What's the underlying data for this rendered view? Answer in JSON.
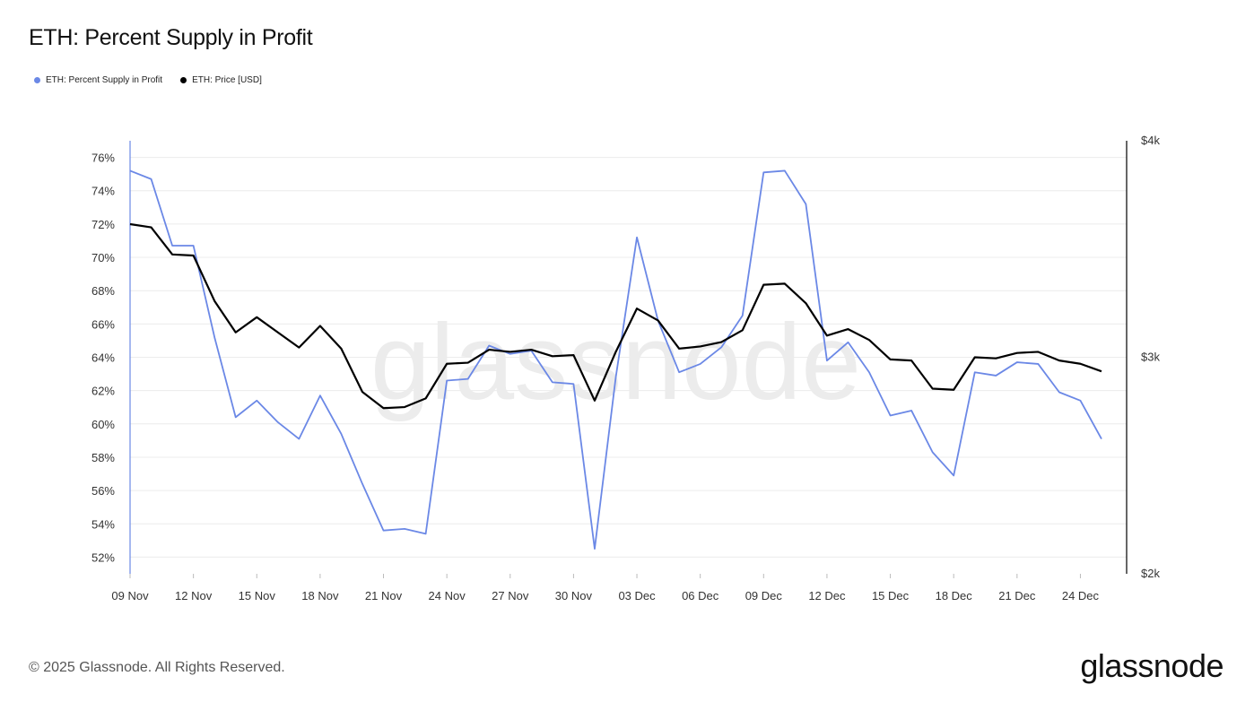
{
  "title": "ETH: Percent Supply in Profit",
  "footer": "© 2025 Glassnode. All Rights Reserved.",
  "brand": "glassnode",
  "watermark": "glassnode",
  "colors": {
    "supply": "#6b88e6",
    "price": "#000000",
    "grid": "#ececec"
  },
  "chart_data": {
    "type": "line",
    "title": "ETH: Percent Supply in Profit",
    "legend_position": "top-left",
    "grid": true,
    "x": [
      "09 Nov",
      "10 Nov",
      "11 Nov",
      "12 Nov",
      "13 Nov",
      "14 Nov",
      "15 Nov",
      "16 Nov",
      "17 Nov",
      "18 Nov",
      "19 Nov",
      "20 Nov",
      "21 Nov",
      "22 Nov",
      "23 Nov",
      "24 Nov",
      "25 Nov",
      "26 Nov",
      "27 Nov",
      "28 Nov",
      "29 Nov",
      "30 Nov",
      "01 Dec",
      "02 Dec",
      "03 Dec",
      "04 Dec",
      "05 Dec",
      "06 Dec",
      "07 Dec",
      "08 Dec",
      "09 Dec",
      "10 Dec",
      "11 Dec",
      "12 Dec",
      "13 Dec",
      "14 Dec",
      "15 Dec",
      "16 Dec",
      "17 Dec",
      "18 Dec",
      "19 Dec",
      "20 Dec",
      "21 Dec",
      "22 Dec",
      "23 Dec",
      "24 Dec",
      "25 Dec"
    ],
    "x_ticks": [
      "09 Nov",
      "12 Nov",
      "15 Nov",
      "18 Nov",
      "21 Nov",
      "24 Nov",
      "27 Nov",
      "30 Nov",
      "03 Dec",
      "06 Dec",
      "09 Dec",
      "12 Dec",
      "15 Dec",
      "18 Dec",
      "21 Dec",
      "24 Dec"
    ],
    "y_left": {
      "ticks": [
        "52%",
        "54%",
        "56%",
        "58%",
        "60%",
        "62%",
        "64%",
        "66%",
        "68%",
        "70%",
        "72%",
        "74%",
        "76%"
      ],
      "range": [
        51,
        77
      ]
    },
    "y_right": {
      "ticks": [
        "$2k",
        "$3k",
        "$4k"
      ],
      "range": [
        2000,
        4000
      ]
    },
    "series": [
      {
        "name": "ETH: Percent Supply in Profit",
        "axis": "left",
        "color": "#6b88e6",
        "values": [
          75.2,
          74.7,
          70.7,
          70.7,
          65.2,
          60.4,
          61.4,
          60.1,
          59.1,
          61.7,
          59.4,
          56.4,
          53.6,
          53.7,
          53.4,
          62.6,
          62.7,
          64.7,
          64.2,
          64.4,
          62.5,
          62.4,
          52.5,
          62.8,
          71.2,
          66.2,
          63.1,
          63.6,
          64.6,
          66.5,
          75.1,
          75.2,
          73.2,
          63.8,
          64.9,
          63.1,
          60.5,
          60.8,
          58.3,
          56.9,
          63.1,
          62.9,
          63.7,
          63.6,
          61.9,
          61.4,
          59.1
        ]
      },
      {
        "name": "ETH: Price [USD]",
        "axis": "right",
        "color": "#000000",
        "values": [
          3615,
          3600,
          3475,
          3470,
          3260,
          3115,
          3185,
          3115,
          3045,
          3145,
          3040,
          2840,
          2765,
          2770,
          2810,
          2970,
          2975,
          3035,
          3025,
          3035,
          3005,
          3010,
          2800,
          3025,
          3225,
          3170,
          3040,
          3050,
          3070,
          3125,
          3335,
          3340,
          3250,
          3100,
          3130,
          3080,
          2990,
          2985,
          2855,
          2850,
          3000,
          2995,
          3020,
          3025,
          2985,
          2970,
          2935
        ]
      }
    ]
  }
}
